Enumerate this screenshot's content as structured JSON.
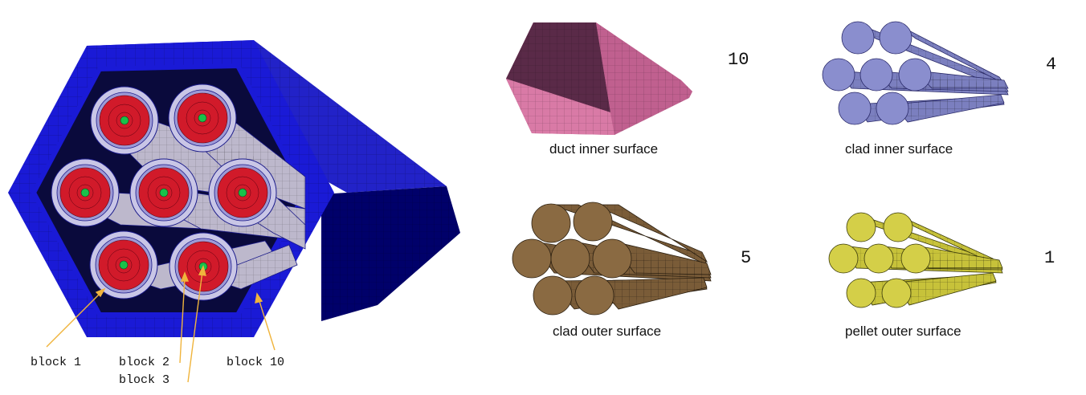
{
  "block_labels": [
    "block 1",
    "block 2",
    "block 3",
    "block 10"
  ],
  "panels": [
    {
      "caption": "duct inner surface",
      "count": "10"
    },
    {
      "caption": "clad inner surface",
      "count": "4"
    },
    {
      "caption": "clad outer surface",
      "count": "5"
    },
    {
      "caption": "pellet outer surface",
      "count": "1"
    }
  ],
  "colors": {
    "duct": "#1a1ad6",
    "duct_dark": "#00006e",
    "duct_inner": "#0a0a3c",
    "clad": "#c7c3d6",
    "clad_ring": "#b9b9ee",
    "pellet": "#d11a2a",
    "pellet_center": "#19c24a",
    "mesh_line": "#1b1b8a",
    "arrow": "#f0b43c",
    "duct_inner_surface": "#c0608f",
    "clad_inner_surface": "#7b7fbf",
    "clad_outer_surface": "#7a5c38",
    "pellet_outer_surface": "#c7c23a"
  }
}
